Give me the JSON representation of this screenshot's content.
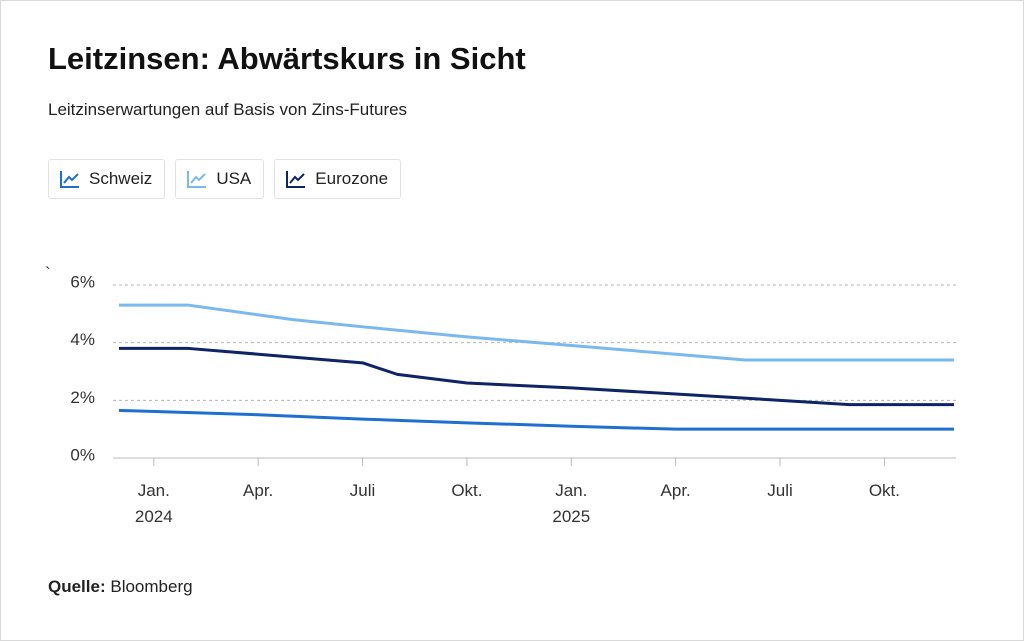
{
  "chart_data": {
    "type": "line",
    "title": "Leitzinsen: Abwärtskurs in Sicht",
    "subtitle": "Leitzinserwartungen auf Basis von Zins-Futures",
    "annotation": "`",
    "source_label": "Quelle:",
    "source": "Bloomberg",
    "xlim": [
      "2023-12",
      "2025-12"
    ],
    "xticks": [
      {
        "value": "2024-01",
        "label": "Jan.\n2024"
      },
      {
        "value": "2024-04",
        "label": "Apr."
      },
      {
        "value": "2024-07",
        "label": "Juli"
      },
      {
        "value": "2024-10",
        "label": "Okt."
      },
      {
        "value": "2025-01",
        "label": "Jan.\n2025"
      },
      {
        "value": "2025-04",
        "label": "Apr."
      },
      {
        "value": "2025-07",
        "label": "Juli"
      },
      {
        "value": "2025-10",
        "label": "Okt."
      }
    ],
    "ylim": [
      0,
      6
    ],
    "yticks": [
      {
        "value": 0,
        "label": "0%"
      },
      {
        "value": 2,
        "label": "2%"
      },
      {
        "value": 4,
        "label": "4%"
      },
      {
        "value": 6,
        "label": "6%"
      }
    ],
    "grid": true,
    "series": [
      {
        "name": "Schweiz",
        "color": "#1f6fd1",
        "x": [
          "2023-12",
          "2024-04",
          "2024-07",
          "2024-10",
          "2025-01",
          "2025-04",
          "2025-12"
        ],
        "values": [
          1.65,
          1.5,
          1.35,
          1.22,
          1.1,
          1.0,
          1.0
        ]
      },
      {
        "name": "USA",
        "color": "#7ab8f0",
        "x": [
          "2023-12",
          "2024-02",
          "2024-05",
          "2024-07",
          "2024-10",
          "2025-01",
          "2025-04",
          "2025-06",
          "2025-12"
        ],
        "values": [
          5.3,
          5.3,
          4.8,
          4.55,
          4.2,
          3.9,
          3.6,
          3.4,
          3.4
        ]
      },
      {
        "name": "Eurozone",
        "color": "#0d2466",
        "x": [
          "2023-12",
          "2024-02",
          "2024-04",
          "2024-07",
          "2024-08",
          "2024-10",
          "2025-01",
          "2025-04",
          "2025-07",
          "2025-09",
          "2025-12"
        ],
        "values": [
          3.8,
          3.8,
          3.6,
          3.3,
          2.9,
          2.6,
          2.43,
          2.22,
          2.0,
          1.85,
          1.85
        ]
      }
    ]
  }
}
